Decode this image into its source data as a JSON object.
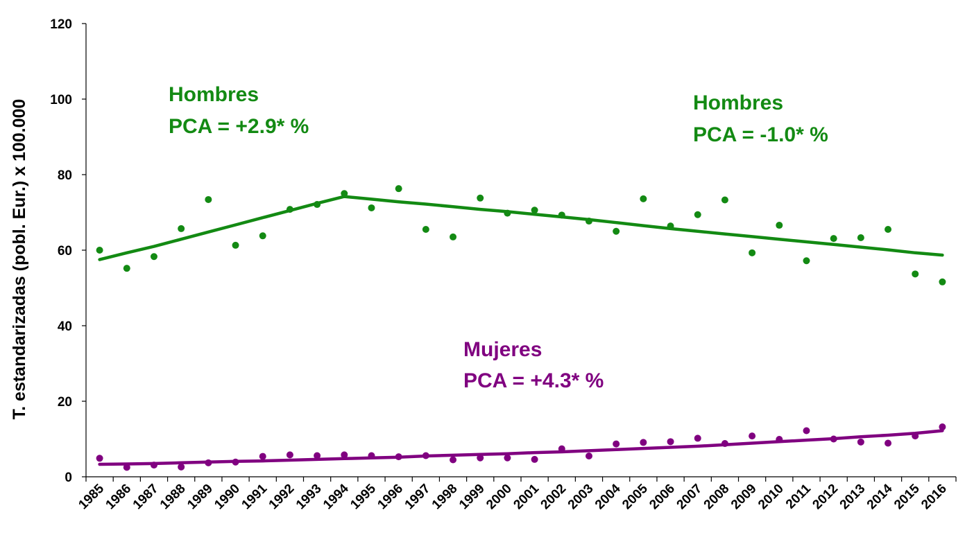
{
  "chart_data": {
    "type": "scatter",
    "ylabel": "T. estandarizadas (pobl. Eur.) x 100.000",
    "xlabel": "",
    "ylim": [
      0,
      120
    ],
    "yticks": [
      0,
      20,
      40,
      60,
      80,
      100,
      120
    ],
    "categories": [
      "1985",
      "1986",
      "1987",
      "1988",
      "1989",
      "1990",
      "1991",
      "1992",
      "1993",
      "1994",
      "1995",
      "1996",
      "1997",
      "1998",
      "1999",
      "2000",
      "2001",
      "2002",
      "2003",
      "2004",
      "2005",
      "2006",
      "2007",
      "2008",
      "2009",
      "2010",
      "2011",
      "2012",
      "2013",
      "2014",
      "2015",
      "2016"
    ],
    "series": [
      {
        "key": "hombres",
        "color": "#138a13",
        "observed": [
          60.0,
          55.2,
          58.3,
          65.7,
          73.4,
          61.3,
          63.8,
          70.8,
          72.1,
          75.0,
          71.2,
          76.3,
          65.5,
          63.5,
          73.8,
          69.8,
          70.6,
          69.3,
          67.7,
          65.0,
          73.6,
          66.4,
          69.4,
          73.3,
          59.3,
          66.6,
          57.2,
          63.1,
          63.3,
          65.5,
          53.7,
          51.6
        ],
        "fitted": [
          57.5,
          59.3,
          61.0,
          62.9,
          64.8,
          66.7,
          68.6,
          70.5,
          72.4,
          74.2,
          73.5,
          72.8,
          72.2,
          71.5,
          70.8,
          70.2,
          69.5,
          68.8,
          68.1,
          67.3,
          66.5,
          65.7,
          65.0,
          64.3,
          63.6,
          62.9,
          62.2,
          61.5,
          60.8,
          60.1,
          59.3,
          58.7
        ]
      },
      {
        "key": "mujeres",
        "color": "#800080",
        "observed": [
          4.9,
          2.5,
          3.1,
          2.6,
          3.7,
          3.9,
          5.4,
          5.8,
          5.6,
          5.8,
          5.6,
          5.3,
          5.6,
          4.5,
          5.0,
          5.0,
          4.6,
          7.4,
          5.5,
          8.7,
          9.1,
          9.3,
          10.2,
          8.8,
          10.8,
          9.9,
          12.2,
          10.0,
          9.2,
          8.9,
          10.8,
          13.2
        ],
        "fitted": [
          3.3,
          3.4,
          3.5,
          3.7,
          3.9,
          4.1,
          4.2,
          4.4,
          4.6,
          4.8,
          5.0,
          5.2,
          5.5,
          5.7,
          5.9,
          6.1,
          6.4,
          6.6,
          6.9,
          7.2,
          7.5,
          7.8,
          8.1,
          8.5,
          8.9,
          9.3,
          9.7,
          10.1,
          10.6,
          11.0,
          11.5,
          12.2
        ]
      }
    ],
    "annotations": [
      {
        "key": "hombres_a",
        "line1": "Hombres",
        "line2": "PCA = +2.9* %"
      },
      {
        "key": "hombres_b",
        "line1": "Hombres",
        "line2": "PCA = -1.0* %"
      },
      {
        "key": "mujeres_a",
        "line1": "Mujeres",
        "line2": "PCA = +4.3* %"
      }
    ]
  }
}
